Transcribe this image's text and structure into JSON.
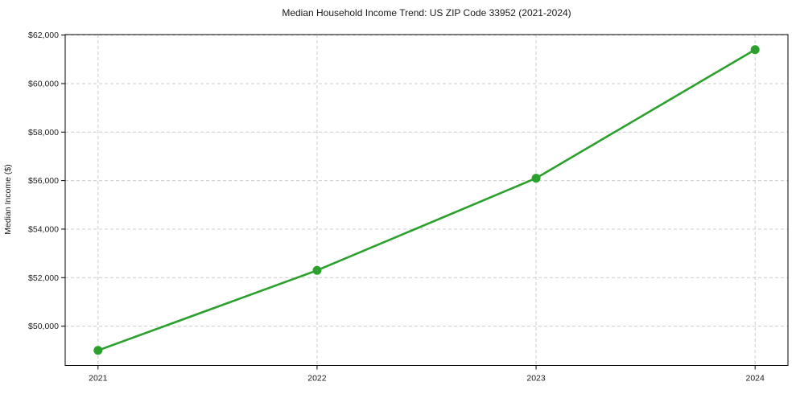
{
  "chart_data": {
    "type": "line",
    "title": "Median Household Income Trend: US ZIP Code 33952 (2021-2024)",
    "xlabel": "",
    "ylabel": "Median Income ($)",
    "x": [
      2021,
      2022,
      2023,
      2024
    ],
    "series": [
      {
        "name": "Median Household Income",
        "values": [
          49000,
          52300,
          56100,
          61400
        ],
        "color": "#2ca02c",
        "marker": "circle",
        "marker_radius": 5.5,
        "line_width": 2.6
      }
    ],
    "xlim": [
      2020.85,
      2024.15
    ],
    "ylim": [
      48380,
      62020
    ],
    "xticks": [
      2021,
      2022,
      2023,
      2024
    ],
    "xtick_labels": [
      "2021",
      "2022",
      "2023",
      "2024"
    ],
    "yticks": [
      50000,
      52000,
      54000,
      56000,
      58000,
      60000,
      62000
    ],
    "ytick_labels": [
      "$50,000",
      "$52,000",
      "$54,000",
      "$56,000",
      "$58,000",
      "$60,000",
      "$62,000"
    ],
    "grid": true,
    "grid_style": "dashed",
    "legend": false,
    "colors": {
      "grid": "#cccccc",
      "spine": "#000000",
      "tick": "#000000",
      "text": "#1a1a1a",
      "background": "#ffffff"
    }
  }
}
